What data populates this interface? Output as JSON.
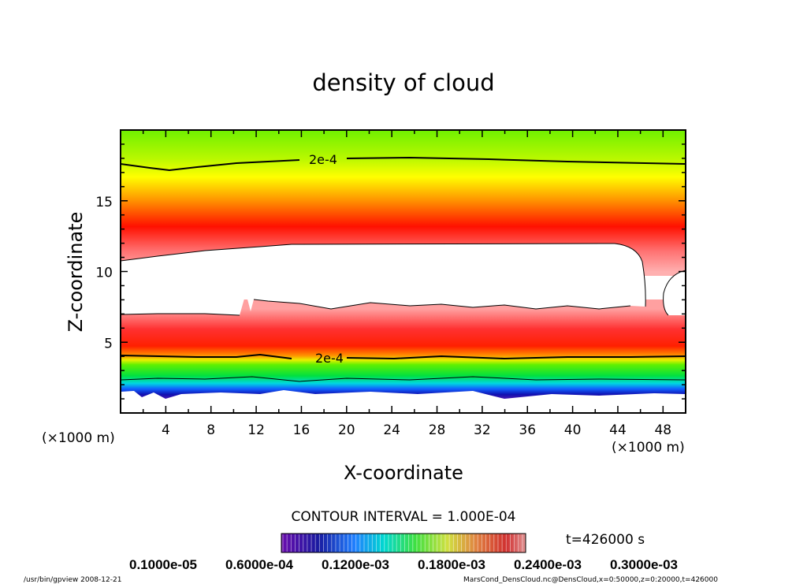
{
  "chart_data": {
    "type": "heatmap",
    "title": "density of cloud",
    "xlabel": "X-coordinate",
    "ylabel": "Z-coordinate",
    "x_unit": "(×1000 m)",
    "y_unit": "(×1000 m)",
    "xlim": [
      0,
      50
    ],
    "ylim": [
      0,
      20
    ],
    "x_ticks": [
      4,
      8,
      12,
      16,
      20,
      24,
      28,
      32,
      36,
      40,
      44,
      48
    ],
    "y_ticks": [
      5,
      10,
      15
    ],
    "contour_label": "2e-4",
    "contour_interval_text": "CONTOUR INTERVAL = 1.000E-04",
    "time_text": "t=426000 s",
    "colorbar_labels": [
      "0.1000e-05",
      "0.6000e-04",
      "0.1200e-03",
      "0.1800e-03",
      "0.2400e-03",
      "0.3000e-03"
    ],
    "colorbar_range": [
      0,
      0.0003
    ],
    "colors": [
      "#6a0dad",
      "#1010c0",
      "#00c8ff",
      "#00e000",
      "#80ff00",
      "#ffff00",
      "#ff8000",
      "#ff0000",
      "#ffa0a0"
    ]
  },
  "footer": {
    "left": "/usr/bin/gpview   2008-12-21",
    "right": "MarsCond_DensCloud.nc@DensCloud,x=0:50000,z=0:20000,t=426000"
  }
}
